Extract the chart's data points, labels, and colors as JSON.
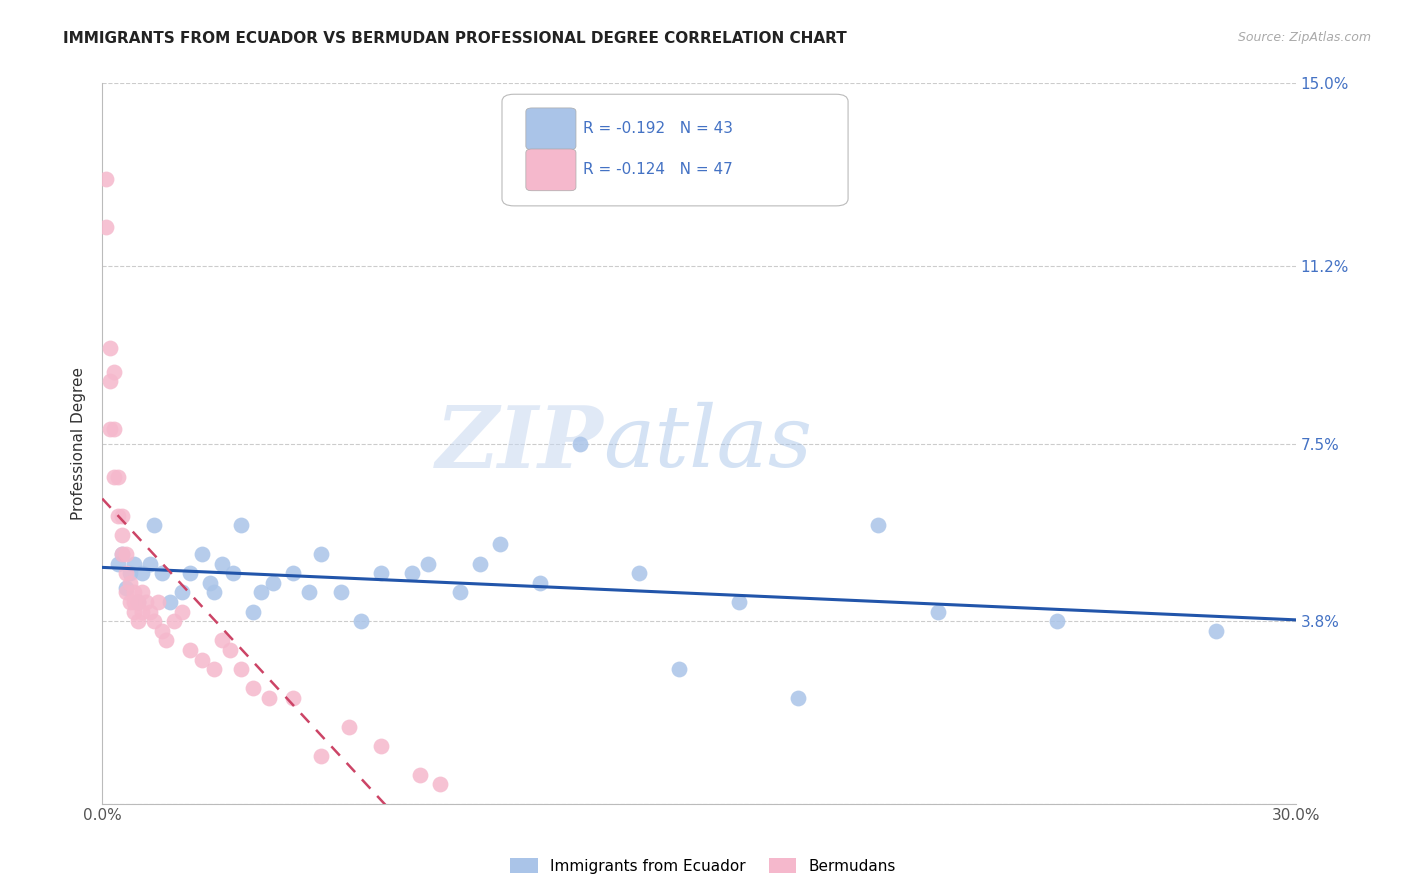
{
  "title": "IMMIGRANTS FROM ECUADOR VS BERMUDAN PROFESSIONAL DEGREE CORRELATION CHART",
  "source": "Source: ZipAtlas.com",
  "ylabel": "Professional Degree",
  "xlim": [
    0.0,
    0.3
  ],
  "ylim": [
    0.0,
    0.15
  ],
  "xtick_positions": [
    0.0,
    0.05,
    0.1,
    0.15,
    0.2,
    0.25,
    0.3
  ],
  "xticklabels": [
    "0.0%",
    "",
    "",
    "",
    "",
    "",
    "30.0%"
  ],
  "ytick_right_labels": [
    "",
    "3.8%",
    "7.5%",
    "11.2%",
    "15.0%"
  ],
  "ytick_right_values": [
    0.0,
    0.038,
    0.075,
    0.112,
    0.15
  ],
  "grid_color": "#cccccc",
  "background_color": "#ffffff",
  "blue_R": "-0.192",
  "blue_N": "43",
  "pink_R": "-0.124",
  "pink_N": "47",
  "legend_label_blue": "Immigrants from Ecuador",
  "legend_label_pink": "Bermudans",
  "blue_color": "#aac4e8",
  "pink_color": "#f5b8cc",
  "blue_line_color": "#2255aa",
  "pink_line_color": "#cc4466",
  "watermark_zip": "ZIP",
  "watermark_atlas": "atlas",
  "blue_x": [
    0.004,
    0.005,
    0.006,
    0.007,
    0.008,
    0.009,
    0.01,
    0.012,
    0.013,
    0.015,
    0.017,
    0.02,
    0.022,
    0.025,
    0.027,
    0.028,
    0.03,
    0.033,
    0.035,
    0.038,
    0.04,
    0.043,
    0.048,
    0.052,
    0.055,
    0.06,
    0.065,
    0.07,
    0.078,
    0.082,
    0.09,
    0.095,
    0.1,
    0.11,
    0.12,
    0.135,
    0.145,
    0.16,
    0.175,
    0.195,
    0.21,
    0.24,
    0.28
  ],
  "blue_y": [
    0.05,
    0.052,
    0.045,
    0.048,
    0.05,
    0.042,
    0.048,
    0.05,
    0.058,
    0.048,
    0.042,
    0.044,
    0.048,
    0.052,
    0.046,
    0.044,
    0.05,
    0.048,
    0.058,
    0.04,
    0.044,
    0.046,
    0.048,
    0.044,
    0.052,
    0.044,
    0.038,
    0.048,
    0.048,
    0.05,
    0.044,
    0.05,
    0.054,
    0.046,
    0.075,
    0.048,
    0.028,
    0.042,
    0.022,
    0.058,
    0.04,
    0.038,
    0.036
  ],
  "pink_x": [
    0.001,
    0.001,
    0.002,
    0.002,
    0.002,
    0.003,
    0.003,
    0.003,
    0.004,
    0.004,
    0.005,
    0.005,
    0.005,
    0.006,
    0.006,
    0.006,
    0.007,
    0.007,
    0.008,
    0.008,
    0.008,
    0.009,
    0.009,
    0.01,
    0.01,
    0.011,
    0.012,
    0.013,
    0.014,
    0.015,
    0.016,
    0.018,
    0.02,
    0.022,
    0.025,
    0.028,
    0.03,
    0.032,
    0.035,
    0.038,
    0.042,
    0.048,
    0.055,
    0.062,
    0.07,
    0.08,
    0.085
  ],
  "pink_y": [
    0.13,
    0.12,
    0.095,
    0.088,
    0.078,
    0.09,
    0.078,
    0.068,
    0.068,
    0.06,
    0.06,
    0.056,
    0.052,
    0.052,
    0.048,
    0.044,
    0.046,
    0.042,
    0.044,
    0.042,
    0.04,
    0.042,
    0.038,
    0.044,
    0.04,
    0.042,
    0.04,
    0.038,
    0.042,
    0.036,
    0.034,
    0.038,
    0.04,
    0.032,
    0.03,
    0.028,
    0.034,
    0.032,
    0.028,
    0.024,
    0.022,
    0.022,
    0.01,
    0.016,
    0.012,
    0.006,
    0.004
  ]
}
